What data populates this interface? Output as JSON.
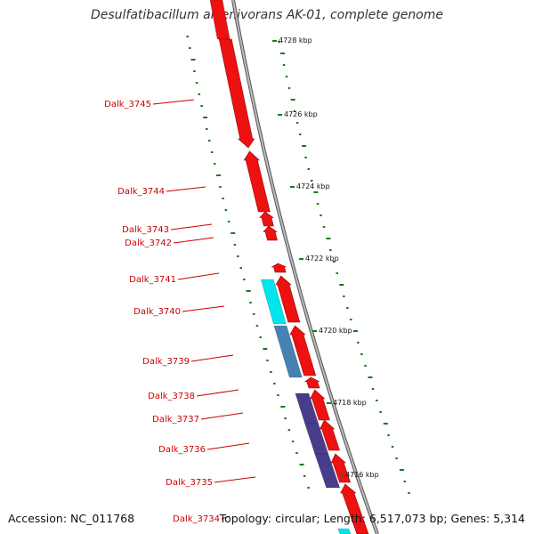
{
  "title": "Desulfatibacillum alkenivorans AK-01, complete genome",
  "accession": "Accession: NC_011768",
  "topology": "Topology: circular; Length: 6,517,073 bp; Genes: 5,314",
  "colors": {
    "forward_gene": "#ee1111",
    "label_red": "#cc0000",
    "cyan_gene": "#00e5ee",
    "steelblue_gene": "#4682b4",
    "navy_gene": "#483d8b",
    "backbone": "#888888",
    "gc_tick": "#1a7a1a"
  },
  "gene_labels": [
    "Dalk_3745",
    "Dalk_3744",
    "Dalk_3743",
    "Dalk_3742",
    "Dalk_3741",
    "Dalk_3740",
    "Dalk_3739",
    "Dalk_3738",
    "Dalk_3737",
    "Dalk_3736",
    "Dalk_3735",
    "Dalk_3734"
  ],
  "scale_labels": [
    "4728 kbp",
    "4726 kbp",
    "4724 kbp",
    "4722 kbp",
    "4720 kbp",
    "4718 kbp",
    "4716 kbp"
  ]
}
